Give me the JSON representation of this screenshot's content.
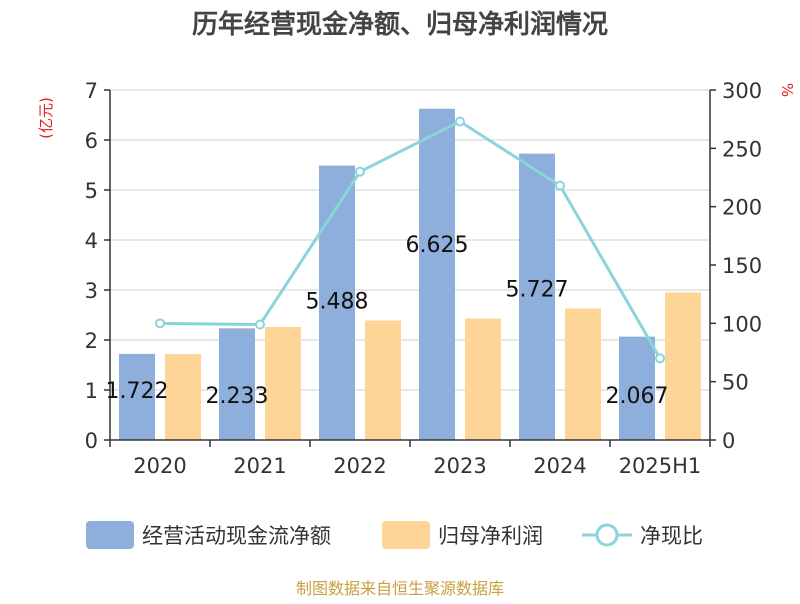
{
  "chart_data": {
    "type": "bar",
    "title": "历年经营现金净额、归母净利润情况",
    "categories": [
      "2020",
      "2021",
      "2022",
      "2023",
      "2024",
      "2025H1"
    ],
    "series": [
      {
        "name": "经营活动现金流净额",
        "type": "bar",
        "axis": "left",
        "values": [
          1.722,
          2.233,
          5.488,
          6.625,
          5.727,
          2.067
        ],
        "labels": [
          "1.722",
          "2.233",
          "5.488",
          "6.625",
          "5.727",
          "2.067"
        ]
      },
      {
        "name": "归母净利润",
        "type": "bar",
        "axis": "left",
        "values": [
          1.72,
          2.26,
          2.39,
          2.43,
          2.63,
          2.95
        ]
      },
      {
        "name": "净现比",
        "type": "line",
        "axis": "right",
        "values": [
          100,
          99,
          230,
          273,
          218,
          70
        ]
      }
    ],
    "y_left": {
      "label": "(亿元)",
      "min": 0,
      "max": 7,
      "ticks": [
        "0",
        "1",
        "2",
        "3",
        "4",
        "5",
        "6",
        "7"
      ]
    },
    "y_right": {
      "label": "%",
      "min": 0,
      "max": 300,
      "ticks": [
        "0",
        "50",
        "100",
        "150",
        "200",
        "250",
        "300"
      ]
    },
    "grid": true,
    "legend_position": "bottom",
    "colors": {
      "bar1": "#8eaedb",
      "bar2": "#fed596",
      "line": "#8ad5d9",
      "axis_label": "#e02020",
      "source": "#c8a040",
      "title": "#444444"
    }
  },
  "source_text": "制图数据来自恒生聚源数据库"
}
